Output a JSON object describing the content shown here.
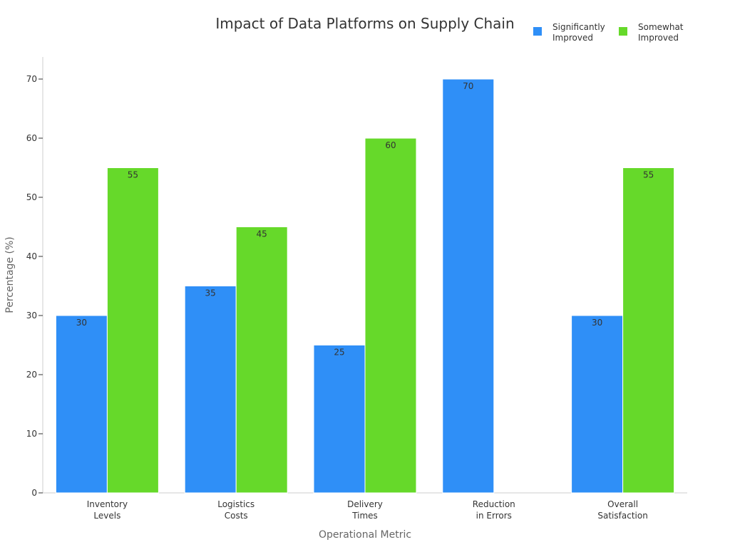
{
  "chart_data": {
    "type": "bar",
    "title": "Impact of Data Platforms on Supply Chain",
    "xlabel": "Operational Metric",
    "ylabel": "Percentage (%)",
    "categories": [
      [
        "Inventory",
        "Levels"
      ],
      [
        "Logistics",
        "Costs"
      ],
      [
        "Delivery",
        "Times"
      ],
      [
        "Reduction",
        "in Errors"
      ],
      [
        "Overall",
        "Satisfaction"
      ]
    ],
    "series": [
      {
        "name": [
          "Significantly",
          "Improved"
        ],
        "color": "#2f8ff7",
        "values": [
          30,
          35,
          25,
          70,
          30
        ]
      },
      {
        "name": [
          "Somewhat",
          "Improved"
        ],
        "color": "#66d92a",
        "values": [
          55,
          45,
          60,
          null,
          55
        ]
      }
    ],
    "ylim": [
      0,
      73
    ],
    "yticks": [
      0,
      10,
      20,
      30,
      40,
      50,
      60,
      70
    ],
    "grid": false,
    "legend_position": "top-right"
  }
}
